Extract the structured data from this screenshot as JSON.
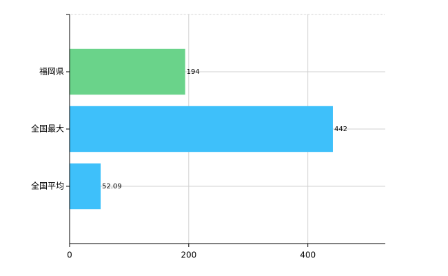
{
  "chart_data": {
    "type": "hbar",
    "categories": [
      "福岡県",
      "全国最大",
      "全国平均"
    ],
    "values": [
      194,
      442,
      52.09
    ],
    "colors": [
      "#6ad38a",
      "#3ec0fa",
      "#3ec0fa"
    ],
    "xlim": [
      0,
      530
    ],
    "xticks": [
      0,
      200,
      400
    ],
    "grid": true
  }
}
